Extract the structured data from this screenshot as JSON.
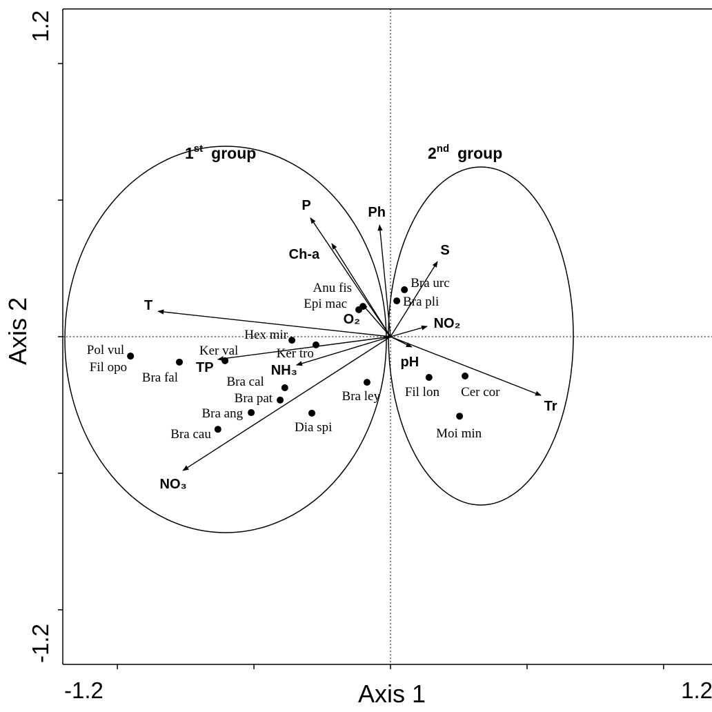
{
  "chart_data": {
    "type": "biplot",
    "x_label": "Axis 1",
    "y_label": "Axis 2",
    "xlim": [
      -1.2,
      1.2
    ],
    "ylim": [
      -1.2,
      1.2
    ],
    "xticks": [
      -1.2,
      1.2
    ],
    "yticks": [
      -1.2,
      1.2
    ],
    "xminorticks": [
      -1,
      -0.5,
      0,
      0.5,
      1
    ],
    "yminorticks": [
      -1,
      -0.5,
      0,
      0.5,
      1
    ],
    "groups": [
      {
        "number": "1",
        "suffix": "st",
        "word": "group"
      },
      {
        "number": "2",
        "suffix": "nd",
        "word": "group"
      }
    ],
    "variables": [
      {
        "label": "T",
        "x": -0.851,
        "y": 0.093
      },
      {
        "label": "P",
        "x": -0.293,
        "y": 0.435
      },
      {
        "label": "Ph",
        "x": -0.04,
        "y": 0.409
      },
      {
        "label": "Ch-a",
        "x": -0.215,
        "y": 0.341
      },
      {
        "label": "S",
        "x": 0.172,
        "y": 0.275
      },
      {
        "label": "O₂",
        "x": -0.104,
        "y": 0.119
      },
      {
        "label": "NO₂",
        "x": 0.134,
        "y": 0.038
      },
      {
        "label": "pH",
        "x": 0.078,
        "y": -0.038
      },
      {
        "label": "Tr",
        "x": 0.551,
        "y": -0.215
      },
      {
        "label": "NH₃",
        "x": -0.344,
        "y": -0.104
      },
      {
        "label": "TP",
        "x": -0.632,
        "y": -0.083
      },
      {
        "label": "NO₃",
        "x": -0.76,
        "y": -0.49
      }
    ],
    "points": [
      {
        "label": "Pol vul",
        "x": -0.952,
        "y": -0.071
      },
      {
        "label": "Fil opo",
        "x": -0.952,
        "y": -0.071
      },
      {
        "label": "Bra fal",
        "x": -0.773,
        "y": -0.093
      },
      {
        "label": "Ker val",
        "x": -0.606,
        "y": -0.088
      },
      {
        "label": "Hex mir",
        "x": -0.361,
        "y": -0.013
      },
      {
        "label": "Ker tro",
        "x": -0.273,
        "y": -0.03
      },
      {
        "label": "Bra cal",
        "x": -0.387,
        "y": -0.187
      },
      {
        "label": "Bra pat",
        "x": -0.404,
        "y": -0.232
      },
      {
        "label": "Bra ang",
        "x": -0.51,
        "y": -0.278
      },
      {
        "label": "Bra cau",
        "x": -0.632,
        "y": -0.339
      },
      {
        "label": "Dia spi",
        "x": -0.288,
        "y": -0.28
      },
      {
        "label": "Bra ley",
        "x": -0.086,
        "y": -0.167
      },
      {
        "label": "Anu fis",
        "x": -0.101,
        "y": 0.111
      },
      {
        "label": "Epi mac",
        "x": -0.116,
        "y": 0.099
      },
      {
        "label": "Bra urc",
        "x": 0.051,
        "y": 0.172
      },
      {
        "label": "Bra pli",
        "x": 0.023,
        "y": 0.131
      },
      {
        "label": "Fil lon",
        "x": 0.141,
        "y": -0.149
      },
      {
        "label": "Cer cor",
        "x": 0.273,
        "y": -0.144
      },
      {
        "label": "Moi min",
        "x": 0.253,
        "y": -0.291
      }
    ]
  }
}
